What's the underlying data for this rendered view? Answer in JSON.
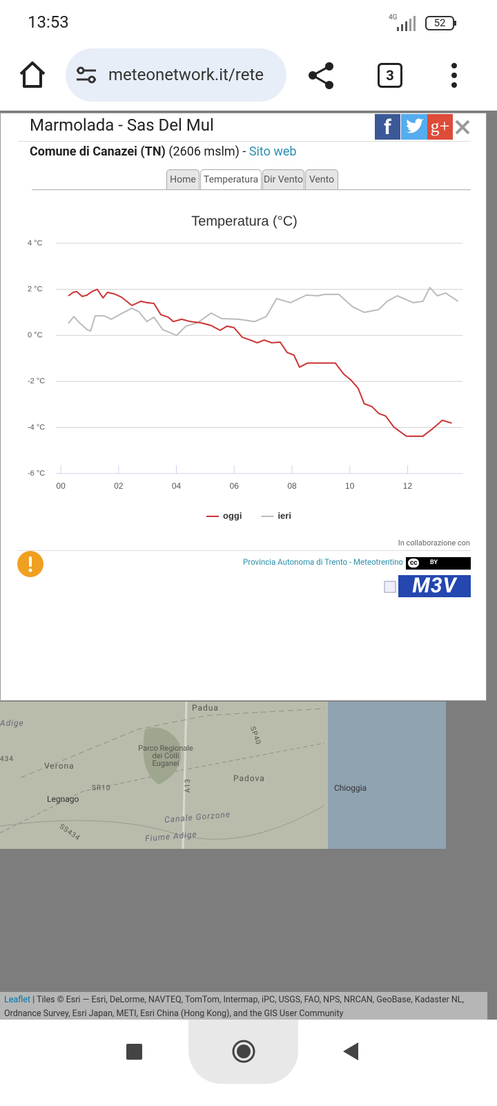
{
  "status_bar": {
    "time": "13:53",
    "network": "4G",
    "battery": "52"
  },
  "browser": {
    "url": "meteonetwork.it/rete",
    "tab_count": "3"
  },
  "popup": {
    "title": "Marmolada - Sas Del Mul",
    "place": "Comune di Canazei (TN)",
    "altitude": "(2606 mslm) -",
    "link": "Sito web",
    "social": [
      "f",
      "g+"
    ],
    "tabs": [
      "Home",
      "Temperatura",
      "Dir Vento",
      "Vento"
    ],
    "active_tab": 1,
    "credits": {
      "intro": "In collaborazione con",
      "partner": "Provincia Autonoma di Trento - Meteotrentino",
      "cc": "cc",
      "by": "BY",
      "logo": "M3V"
    }
  },
  "chart_data": {
    "type": "line",
    "title": "Temperatura (°C)",
    "xlim": [
      -0.17,
      13.9
    ],
    "ylim": [
      -6,
      4
    ],
    "xticks": [
      {
        "value": 0,
        "label": "00"
      },
      {
        "value": 2,
        "label": "02"
      },
      {
        "value": 4,
        "label": "04"
      },
      {
        "value": 6,
        "label": "06"
      },
      {
        "value": 8,
        "label": "08"
      },
      10,
      12
    ],
    "yticks": [
      {
        "value": 4,
        "label": "4 °C"
      },
      {
        "value": 2,
        "label": "2 °C"
      },
      {
        "value": 0,
        "label": "0 °C"
      },
      {
        "value": -2,
        "label": "-2 °C"
      },
      {
        "value": -4,
        "label": "-4 °C"
      },
      {
        "value": -6,
        "label": "-6 °C"
      }
    ],
    "grid": true,
    "legend": "bottom",
    "series": [
      {
        "name": "oggi",
        "color": "#cc3333",
        "x": [
          0.26,
          0.43,
          0.55,
          0.74,
          0.91,
          1.07,
          1.26,
          1.46,
          1.62,
          1.86,
          2.1,
          2.46,
          2.77,
          2.98,
          3.22,
          3.46,
          3.72,
          3.89,
          4.18,
          4.49,
          4.84,
          5.2,
          5.51,
          5.75,
          5.99,
          6.28,
          6.56,
          6.8,
          7.04,
          7.3,
          7.59,
          7.83,
          8.07,
          8.26,
          8.54,
          8.9,
          9.5,
          9.79,
          10.05,
          10.29,
          10.5,
          10.76,
          11.0,
          11.24,
          11.53,
          11.96,
          12.53,
          12.84,
          13.2,
          13.53
        ],
        "values": [
          1.72,
          1.87,
          1.9,
          1.69,
          1.75,
          1.9,
          2.0,
          1.63,
          1.87,
          1.8,
          1.66,
          1.3,
          1.48,
          1.42,
          1.39,
          0.9,
          0.79,
          0.6,
          0.7,
          0.6,
          0.55,
          0.43,
          0.22,
          0.4,
          0.34,
          -0.08,
          -0.2,
          -0.32,
          -0.2,
          -0.32,
          -0.29,
          -0.74,
          -0.86,
          -1.38,
          -1.2,
          -1.2,
          -1.2,
          -1.68,
          -1.95,
          -2.3,
          -2.97,
          -3.09,
          -3.39,
          -3.5,
          -3.99,
          -4.38,
          -4.38,
          -4.08,
          -3.69,
          -3.81
        ]
      },
      {
        "name": "ieri",
        "color": "#bbbbbb",
        "x": [
          0.26,
          0.45,
          0.64,
          0.91,
          1.03,
          1.19,
          1.5,
          1.74,
          2.03,
          2.46,
          2.7,
          2.98,
          3.22,
          3.53,
          4.01,
          4.32,
          4.73,
          5.2,
          5.56,
          6.16,
          6.71,
          7.11,
          7.47,
          7.95,
          8.5,
          8.9,
          9.14,
          9.62,
          10.1,
          10.5,
          11.0,
          11.29,
          11.65,
          12.2,
          12.53,
          12.77,
          13.03,
          13.32,
          13.75
        ],
        "values": [
          0.52,
          0.82,
          0.55,
          0.25,
          0.19,
          0.85,
          0.85,
          0.7,
          0.9,
          1.18,
          1.03,
          0.6,
          0.79,
          0.25,
          0.0,
          0.4,
          0.55,
          0.97,
          0.73,
          0.7,
          0.6,
          0.82,
          1.6,
          1.42,
          1.75,
          1.72,
          1.78,
          1.78,
          1.24,
          1.0,
          1.12,
          1.48,
          1.72,
          1.42,
          1.48,
          2.08,
          1.72,
          1.84,
          1.48
        ]
      }
    ]
  },
  "map": {
    "labels": [
      "Padua",
      "Adige",
      "434",
      "Verona",
      "Parco Regionale dei Colli Euganei",
      "Padova",
      "Chioggia",
      "Legnago",
      "SR10",
      "A13",
      "SP40",
      "SS434",
      "Canale Gorzone",
      "Fiume Adige"
    ],
    "attribution": {
      "link": "Leaflet",
      "text": "| Tiles © Esri — Esri, DeLorme, NAVTEQ, TomTom, Intermap, iPC, USGS, FAO, NPS, NRCAN, GeoBase, Kadaster NL, Ordnance Survey, Esri Japan, METI, Esri China (Hong Kong), and the GIS User Community"
    }
  }
}
